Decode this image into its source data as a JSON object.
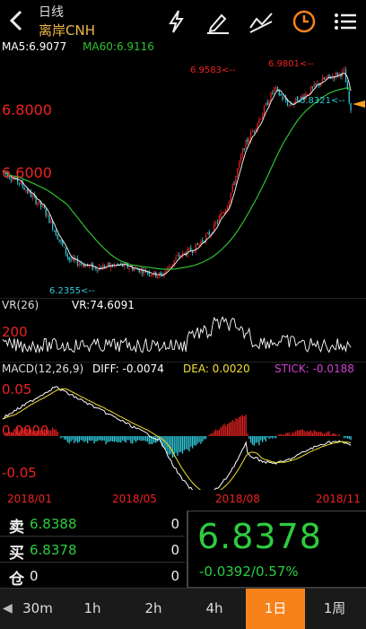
{
  "header": {
    "period_label": "日线",
    "symbol": "离岸CNH"
  },
  "main_chart": {
    "ma5_label": "MA5:6.9077",
    "ma60_label": "MA60:6.9116",
    "axis_labels": [
      "6.8000",
      "6.6000"
    ],
    "markers": {
      "low": "6.2355<--",
      "high_left": "6.9583<--",
      "high_right": "6.9801<--",
      "last": "6.8321<--"
    },
    "colors": {
      "ma5": "#ffffff",
      "ma60": "#30c030",
      "up": "#e02020",
      "down": "#30c8d8"
    }
  },
  "vr_chart": {
    "name": "VR(26)",
    "value_label": "VR:74.6091",
    "axis_label": "200"
  },
  "macd_chart": {
    "name": "MACD(12,26,9)",
    "diff": "DIFF: -0.0074",
    "dea": "DEA: 0.0020",
    "stick": "STICK: -0.0188",
    "axis_top": "0.05",
    "axis_mid": "0.0000",
    "axis_bottom": "-0.05"
  },
  "dates": [
    "2018/01",
    "2018/05",
    "2018/08",
    "2018/11"
  ],
  "quote": {
    "sell_label": "卖",
    "sell_price": "6.8388",
    "sell_qty": "0",
    "buy_label": "买",
    "buy_price": "6.8378",
    "buy_qty": "0",
    "pos_label": "仓",
    "pos_value": "0",
    "pos_qty": "0",
    "last_price": "6.8378",
    "change": "-0.0392/0.57%"
  },
  "tabs": [
    "30m",
    "1h",
    "2h",
    "4h",
    "1日",
    "1周"
  ],
  "active_tab": "1日",
  "chart_data": {
    "type": "candlestick",
    "title": "离岸CNH 日线",
    "series": [
      {
        "name": "MA5",
        "last": 6.9077
      },
      {
        "name": "MA60",
        "last": 6.9116
      }
    ],
    "annotations": {
      "low": 6.2355,
      "high1": 6.9583,
      "high2": 6.9801,
      "last": 6.8321
    },
    "y_ticks": [
      6.6,
      6.8
    ],
    "x_ticks": [
      "2018/01",
      "2018/05",
      "2018/08",
      "2018/11"
    ]
  }
}
